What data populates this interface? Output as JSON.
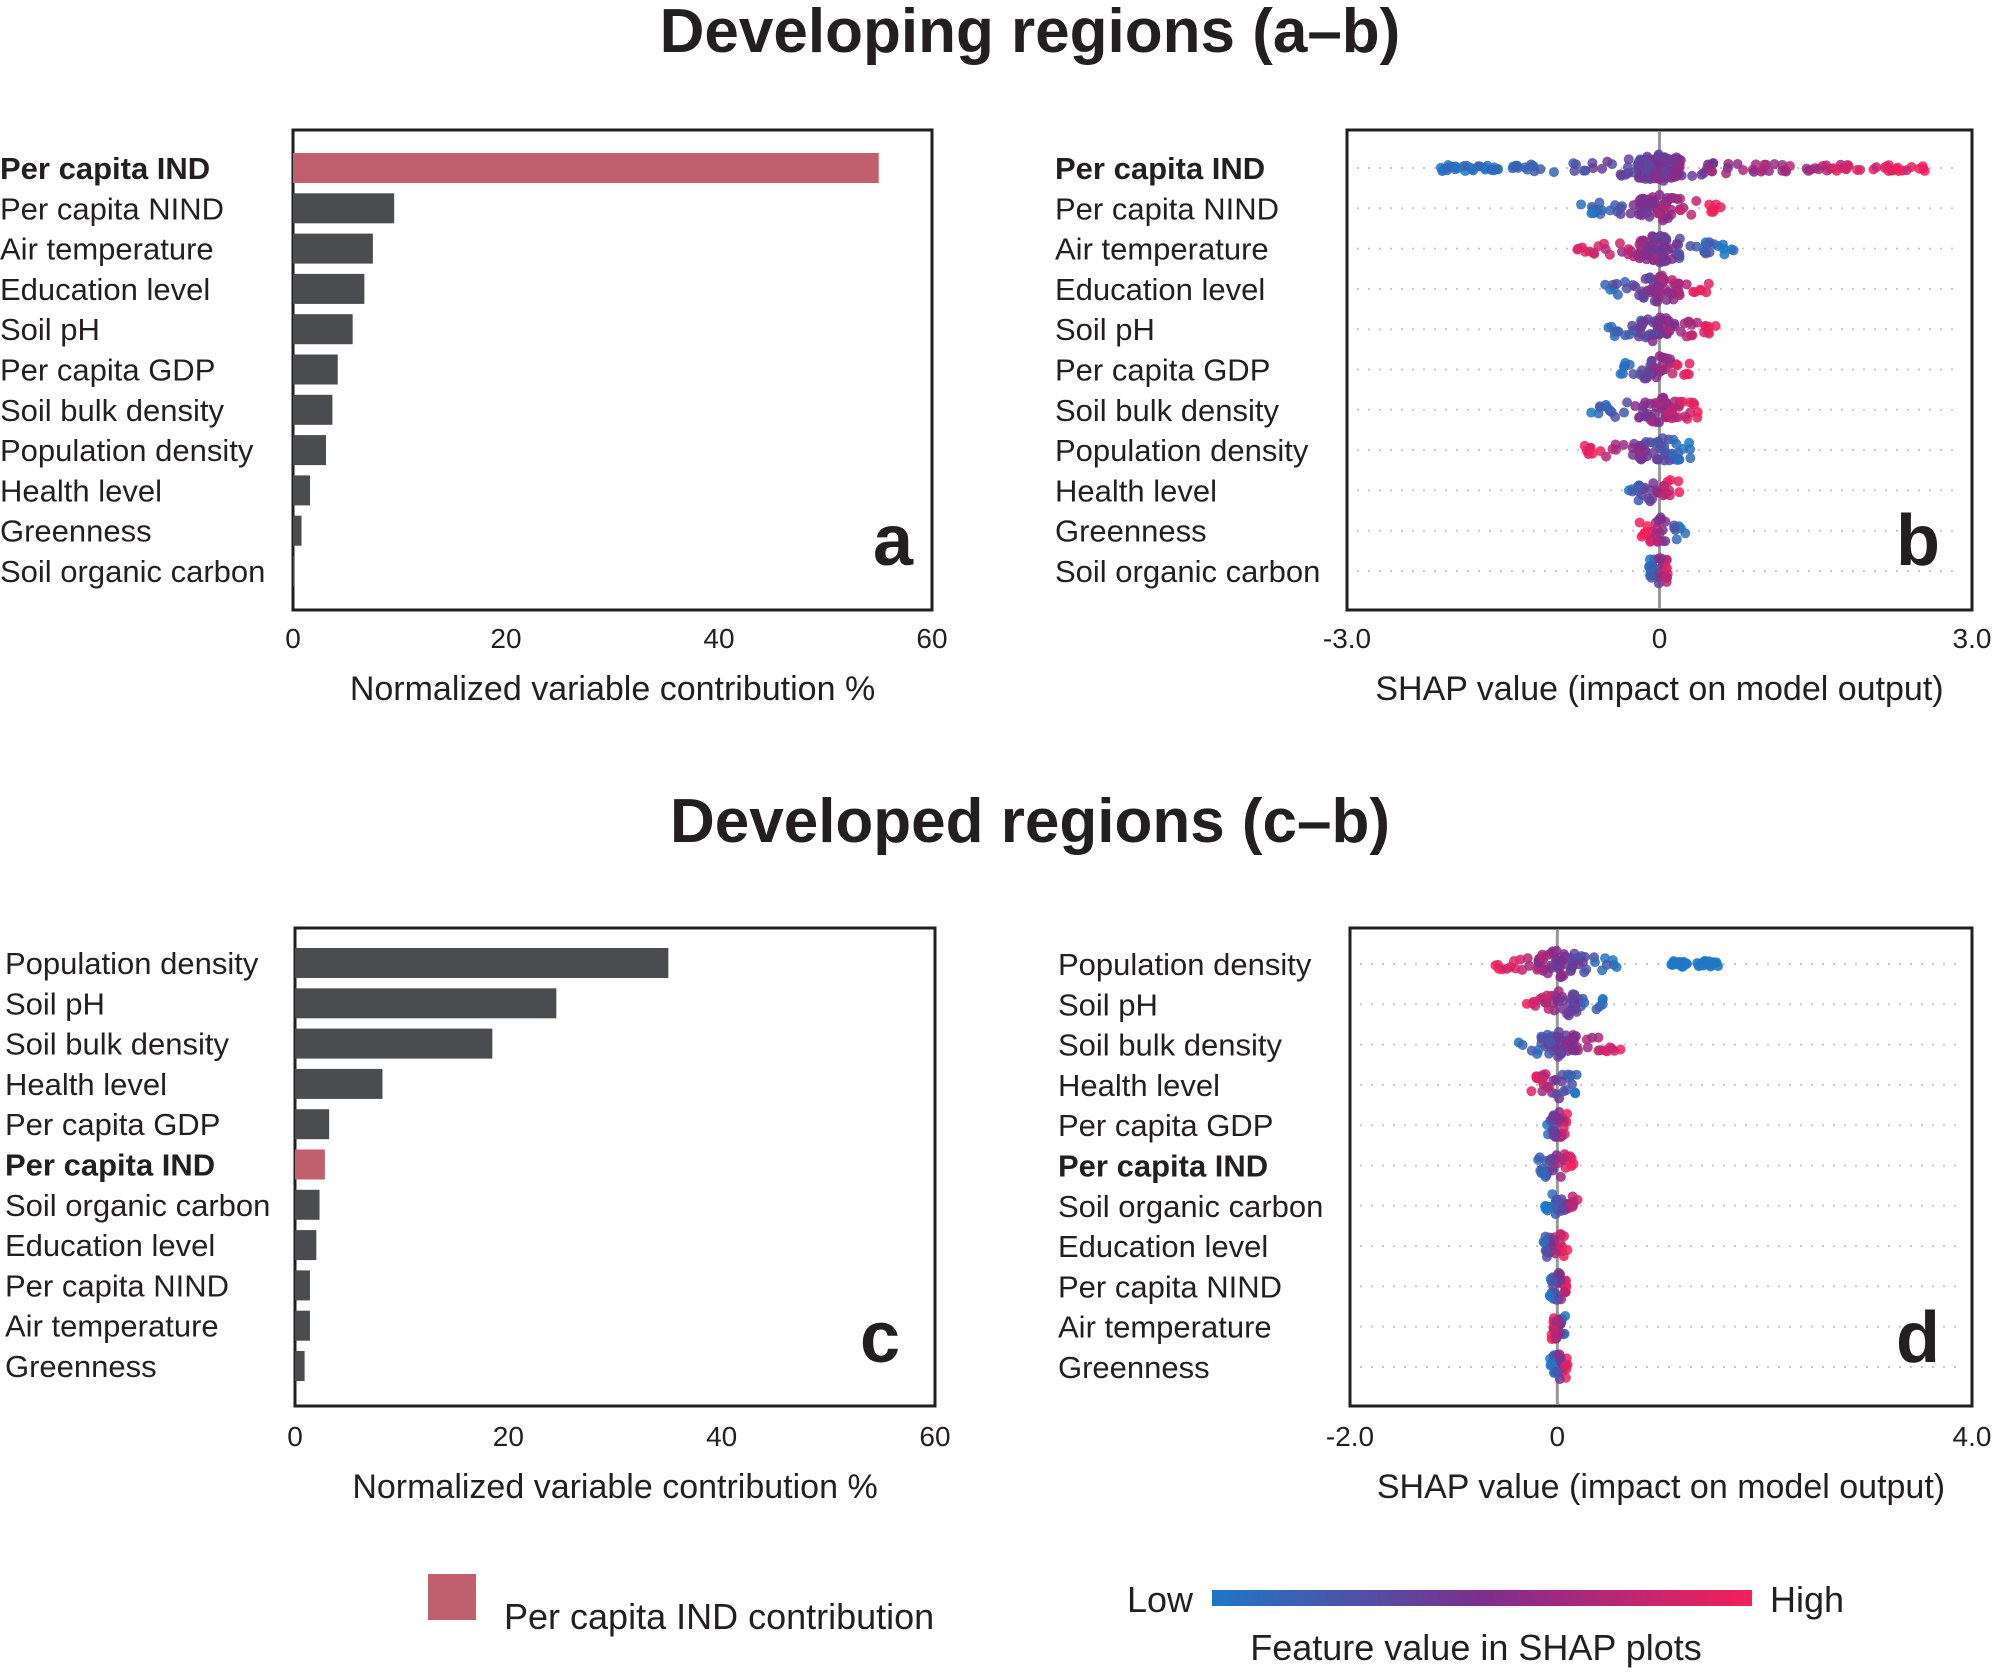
{
  "titles": {
    "top": "Developing regions (a–b)",
    "bottom": "Developed regions (c–b)"
  },
  "colors": {
    "bar": "#4b4c50",
    "highlight": "#c0606f",
    "shap_low": "#1f77c4",
    "shap_mid": "#7b2f8e",
    "shap_high": "#f51f5a",
    "frame": "#231f20"
  },
  "legend": {
    "ind_label": "Per capita IND contribution",
    "low": "Low",
    "high": "High",
    "colorbar_label": "Feature value in SHAP plots"
  },
  "chart_data": [
    {
      "panel": "a",
      "type": "bar",
      "orientation": "horizontal",
      "categories": [
        "Per capita IND",
        "Per capita NIND",
        "Air temperature",
        "Education level",
        "Soil pH",
        "Per capita GDP",
        "Soil bulk density",
        "Population density",
        "Health level",
        "Greenness",
        "Soil organic carbon"
      ],
      "values": [
        55,
        9.5,
        7.5,
        6.7,
        5.6,
        4.2,
        3.7,
        3.1,
        1.6,
        0.8,
        0.1
      ],
      "highlight": "Per capita IND",
      "xlabel": "Normalized variable contribution %",
      "xlim": [
        0,
        60
      ],
      "xticks": [
        "0",
        "20",
        "40",
        "60"
      ]
    },
    {
      "panel": "b",
      "type": "scatter",
      "subtype": "shap-beeswarm",
      "features": [
        "Per capita IND",
        "Per capita NIND",
        "Air temperature",
        "Education level",
        "Soil pH",
        "Per capita GDP",
        "Soil bulk density",
        "Population density",
        "Health level",
        "Greenness",
        "Soil organic carbon"
      ],
      "highlight": "Per capita IND",
      "spread": [
        [
          -2.1,
          2.6
        ],
        [
          -0.8,
          0.6
        ],
        [
          -0.8,
          0.75
        ],
        [
          -0.6,
          0.5
        ],
        [
          -0.5,
          0.6
        ],
        [
          -0.4,
          0.3
        ],
        [
          -0.7,
          0.4
        ],
        [
          -0.75,
          0.3
        ],
        [
          -0.3,
          0.15
        ],
        [
          -0.15,
          0.25
        ],
        [
          -0.1,
          0.1
        ]
      ],
      "low_side": [
        "left",
        "left",
        "right",
        "left",
        "left",
        "left",
        "left",
        "right",
        "left",
        "right",
        "left"
      ],
      "xlabel": "SHAP value (impact on model output)",
      "xlim": [
        -3.0,
        3.0
      ],
      "xticks": [
        "-3.0",
        "0",
        "3.0"
      ]
    },
    {
      "panel": "c",
      "type": "bar",
      "orientation": "horizontal",
      "categories": [
        "Population density",
        "Soil pH",
        "Soil bulk density",
        "Health level",
        "Per capita GDP",
        "Per capita IND",
        "Soil organic carbon",
        "Education level",
        "Per capita NIND",
        "Air temperature",
        "Greenness"
      ],
      "values": [
        35,
        24.5,
        18.5,
        8.2,
        3.2,
        2.8,
        2.3,
        2.0,
        1.4,
        1.4,
        0.9
      ],
      "highlight": "Per capita IND",
      "xlabel": "Normalized variable contribution %",
      "xlim": [
        0,
        60
      ],
      "xticks": [
        "0",
        "20",
        "40",
        "60"
      ]
    },
    {
      "panel": "d",
      "type": "scatter",
      "subtype": "shap-beeswarm",
      "features": [
        "Population density",
        "Soil pH",
        "Soil bulk density",
        "Health level",
        "Per capita GDP",
        "Per capita IND",
        "Soil organic carbon",
        "Education level",
        "Per capita NIND",
        "Air temperature",
        "Greenness"
      ],
      "highlight": "Per capita IND",
      "spread": [
        [
          -0.6,
          0.6
        ],
        [
          -0.3,
          0.45
        ],
        [
          -0.4,
          0.65
        ],
        [
          -0.25,
          0.2
        ],
        [
          -0.1,
          0.1
        ],
        [
          -0.2,
          0.15
        ],
        [
          -0.05,
          0.2
        ],
        [
          -0.15,
          0.05
        ],
        [
          -0.08,
          0.1
        ],
        [
          -0.05,
          0.08
        ],
        [
          -0.05,
          0.1
        ]
      ],
      "outliers": [
        [
          1.1,
          1.25
        ],
        [
          1.35,
          1.55
        ]
      ],
      "low_side": [
        "right",
        "right",
        "left",
        "right",
        "left",
        "left",
        "left",
        "left",
        "left",
        "right",
        "left"
      ],
      "xlabel": "SHAP value (impact on model output)",
      "xlim": [
        -2.0,
        4.0
      ],
      "xticks": [
        "-2.0",
        "0",
        "4.0"
      ]
    }
  ]
}
